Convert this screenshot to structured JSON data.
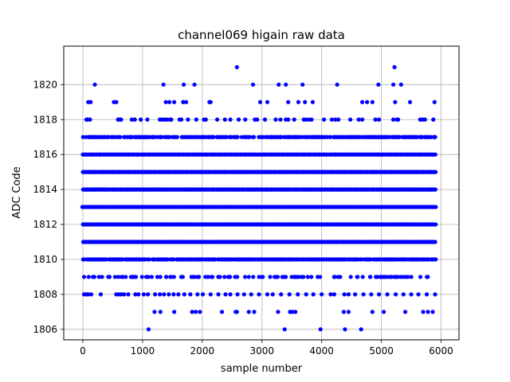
{
  "chart_data": {
    "type": "scatter",
    "title": "channel069 higain raw data",
    "xlabel": "sample number",
    "ylabel": "ADC Code",
    "xlim": [
      -320,
      6300
    ],
    "ylim": [
      1805.4,
      1822.2
    ],
    "xticks": [
      0,
      1000,
      2000,
      3000,
      4000,
      5000,
      6000
    ],
    "yticks": [
      1806,
      1808,
      1810,
      1812,
      1814,
      1816,
      1818,
      1820
    ],
    "grid": true,
    "marker_color": "#0000ff",
    "series": [
      {
        "points": [
          [
            1100,
            1806
          ],
          [
            3380,
            1806
          ],
          [
            3980,
            1806
          ],
          [
            4390,
            1806
          ],
          [
            4660,
            1806
          ],
          [
            1200,
            1807
          ],
          [
            1300,
            1807
          ],
          [
            1530,
            1807
          ],
          [
            1830,
            1807
          ],
          [
            1890,
            1807
          ],
          [
            1960,
            1807
          ],
          [
            2330,
            1807
          ],
          [
            2560,
            1807
          ],
          [
            2580,
            1807
          ],
          [
            2780,
            1807
          ],
          [
            2870,
            1807
          ],
          [
            3270,
            1807
          ],
          [
            3470,
            1807
          ],
          [
            3510,
            1807
          ],
          [
            3560,
            1807
          ],
          [
            4370,
            1807
          ],
          [
            4450,
            1807
          ],
          [
            4850,
            1807
          ],
          [
            5040,
            1807
          ],
          [
            5400,
            1807
          ],
          [
            5700,
            1807
          ],
          [
            5780,
            1807
          ],
          [
            5860,
            1807
          ],
          [
            3280,
            1820
          ],
          [
            3400,
            1820
          ],
          [
            4260,
            1820
          ],
          [
            4950,
            1820
          ],
          [
            5200,
            1820
          ],
          [
            200,
            1820
          ],
          [
            1350,
            1820
          ],
          [
            1690,
            1820
          ],
          [
            1870,
            1820
          ],
          [
            2850,
            1820
          ],
          [
            3680,
            1820
          ],
          [
            5330,
            1820
          ],
          [
            2580,
            1821
          ],
          [
            5220,
            1821
          ],
          [
            90,
            1819
          ],
          [
            130,
            1819
          ],
          [
            520,
            1819
          ],
          [
            560,
            1819
          ],
          [
            1390,
            1819
          ],
          [
            1450,
            1819
          ],
          [
            1530,
            1819
          ],
          [
            1680,
            1819
          ],
          [
            1730,
            1819
          ],
          [
            2120,
            1819
          ],
          [
            2140,
            1819
          ],
          [
            2970,
            1819
          ],
          [
            3090,
            1819
          ],
          [
            3440,
            1819
          ],
          [
            3610,
            1819
          ],
          [
            3720,
            1819
          ],
          [
            3850,
            1819
          ],
          [
            4680,
            1819
          ],
          [
            4760,
            1819
          ],
          [
            4850,
            1819
          ],
          [
            5230,
            1819
          ],
          [
            5480,
            1819
          ],
          [
            5890,
            1819
          ],
          [
            60,
            1818
          ],
          [
            80,
            1818
          ],
          [
            120,
            1818
          ],
          [
            590,
            1818
          ],
          [
            610,
            1818
          ],
          [
            640,
            1818
          ],
          [
            820,
            1818
          ],
          [
            870,
            1818
          ],
          [
            970,
            1818
          ],
          [
            1080,
            1818
          ],
          [
            1290,
            1818
          ],
          [
            1330,
            1818
          ],
          [
            1370,
            1818
          ],
          [
            1410,
            1818
          ],
          [
            1460,
            1818
          ],
          [
            1480,
            1818
          ],
          [
            1620,
            1818
          ],
          [
            1650,
            1818
          ],
          [
            1760,
            1818
          ],
          [
            1900,
            1818
          ],
          [
            2030,
            1818
          ],
          [
            2060,
            1818
          ],
          [
            2250,
            1818
          ],
          [
            2380,
            1818
          ],
          [
            2470,
            1818
          ],
          [
            2610,
            1818
          ],
          [
            2720,
            1818
          ],
          [
            2880,
            1818
          ],
          [
            2920,
            1818
          ],
          [
            3050,
            1818
          ],
          [
            3230,
            1818
          ],
          [
            3310,
            1818
          ],
          [
            3400,
            1818
          ],
          [
            3440,
            1818
          ],
          [
            3540,
            1818
          ],
          [
            3700,
            1818
          ],
          [
            3730,
            1818
          ],
          [
            3780,
            1818
          ],
          [
            3830,
            1818
          ],
          [
            4040,
            1818
          ],
          [
            4170,
            1818
          ],
          [
            4230,
            1818
          ],
          [
            4280,
            1818
          ],
          [
            4480,
            1818
          ],
          [
            4620,
            1818
          ],
          [
            4680,
            1818
          ],
          [
            4900,
            1818
          ],
          [
            4960,
            1818
          ],
          [
            5200,
            1818
          ],
          [
            5260,
            1818
          ],
          [
            5280,
            1818
          ],
          [
            5650,
            1818
          ],
          [
            5690,
            1818
          ],
          [
            5730,
            1818
          ],
          [
            5870,
            1818
          ],
          [
            20,
            1808
          ],
          [
            60,
            1808
          ],
          [
            90,
            1808
          ],
          [
            140,
            1808
          ],
          [
            300,
            1808
          ],
          [
            560,
            1808
          ],
          [
            600,
            1808
          ],
          [
            640,
            1808
          ],
          [
            690,
            1808
          ],
          [
            760,
            1808
          ],
          [
            880,
            1808
          ],
          [
            930,
            1808
          ],
          [
            1020,
            1808
          ],
          [
            1090,
            1808
          ],
          [
            1210,
            1808
          ],
          [
            1290,
            1808
          ],
          [
            1360,
            1808
          ],
          [
            1440,
            1808
          ],
          [
            1520,
            1808
          ],
          [
            1600,
            1808
          ],
          [
            1700,
            1808
          ],
          [
            1800,
            1808
          ],
          [
            1920,
            1808
          ],
          [
            2010,
            1808
          ],
          [
            2140,
            1808
          ],
          [
            2270,
            1808
          ],
          [
            2390,
            1808
          ],
          [
            2470,
            1808
          ],
          [
            2590,
            1808
          ],
          [
            2700,
            1808
          ],
          [
            2820,
            1808
          ],
          [
            2950,
            1808
          ],
          [
            3090,
            1808
          ],
          [
            3180,
            1808
          ],
          [
            3320,
            1808
          ],
          [
            3460,
            1808
          ],
          [
            3600,
            1808
          ],
          [
            3740,
            1808
          ],
          [
            3860,
            1808
          ],
          [
            4000,
            1808
          ],
          [
            4150,
            1808
          ],
          [
            4210,
            1808
          ],
          [
            4380,
            1808
          ],
          [
            4450,
            1808
          ],
          [
            4560,
            1808
          ],
          [
            4700,
            1808
          ],
          [
            4830,
            1808
          ],
          [
            4960,
            1808
          ],
          [
            5100,
            1808
          ],
          [
            5240,
            1808
          ],
          [
            5370,
            1808
          ],
          [
            5500,
            1808
          ],
          [
            5620,
            1808
          ],
          [
            5760,
            1808
          ],
          [
            5900,
            1808
          ]
        ]
      }
    ],
    "dense_bands": [
      {
        "y": 1809,
        "density": 0.35
      },
      {
        "y": 1810,
        "density": 0.85
      },
      {
        "y": 1811,
        "density": 1.0
      },
      {
        "y": 1812,
        "density": 1.0
      },
      {
        "y": 1813,
        "density": 1.0
      },
      {
        "y": 1814,
        "density": 1.0
      },
      {
        "y": 1815,
        "density": 1.0
      },
      {
        "y": 1816,
        "density": 1.0
      },
      {
        "y": 1817,
        "density": 0.75
      }
    ],
    "x_range_samples": [
      0,
      5920
    ]
  }
}
